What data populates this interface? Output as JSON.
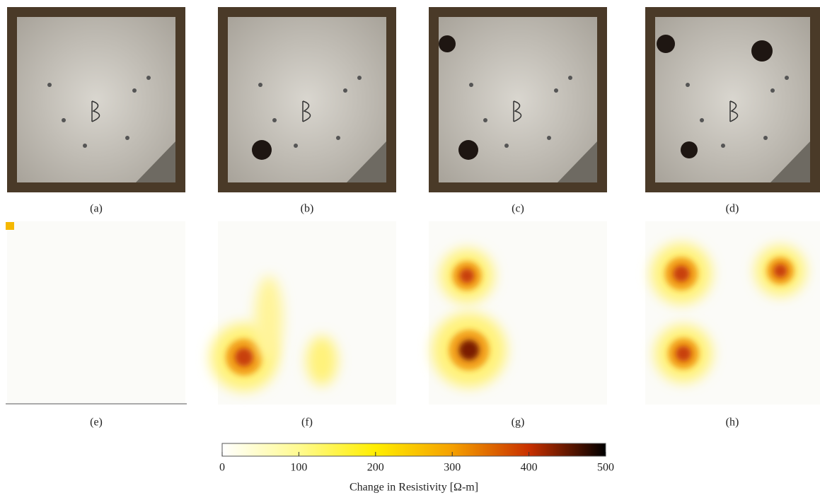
{
  "panels": {
    "labels": [
      "(a)",
      "(b)",
      "(c)",
      "(d)",
      "(e)",
      "(f)",
      "(g)",
      "(h)"
    ]
  },
  "colorbar": {
    "range": [
      0,
      500
    ],
    "ticks": [
      0,
      100,
      200,
      300,
      400,
      500
    ],
    "label": "Change in Resistivity [Ω-m]"
  }
}
